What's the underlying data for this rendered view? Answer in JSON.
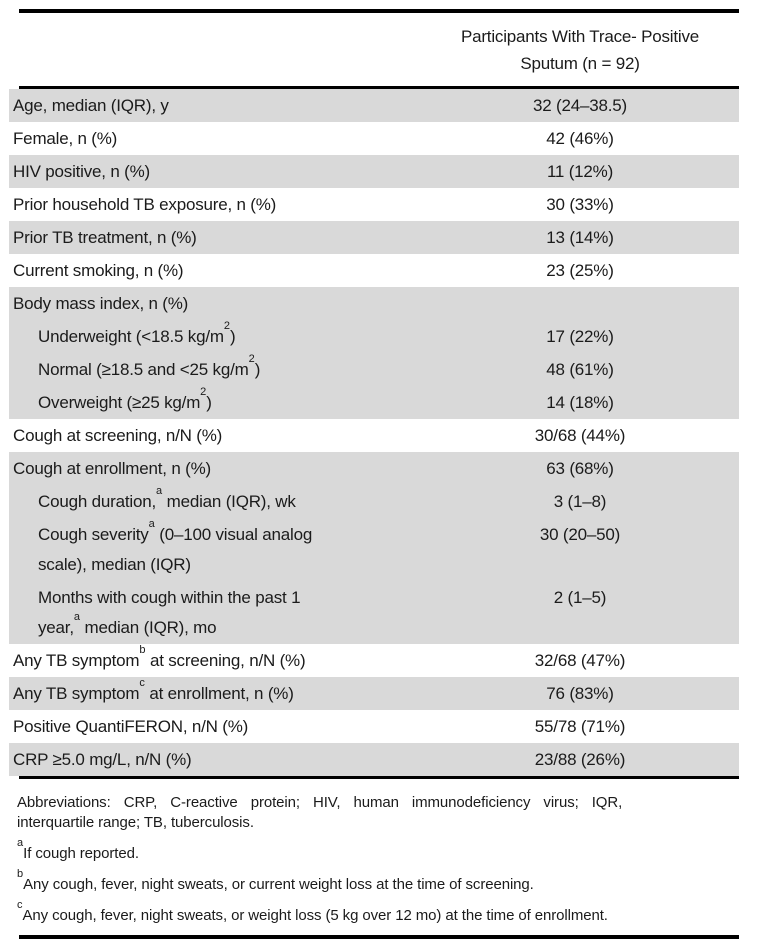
{
  "header": {
    "col2_title": "Participants With Trace- Positive\nSputum (n = 92)"
  },
  "table": {
    "rows": [
      {
        "parts": [
          {
            "t": "Age, median (IQR), y"
          }
        ],
        "value": "32 (24–38.5)",
        "shaded": true,
        "indent": false
      },
      {
        "parts": [
          {
            "t": "Female, n (%)"
          }
        ],
        "value": "42 (46%)",
        "shaded": false,
        "indent": false
      },
      {
        "parts": [
          {
            "t": "HIV positive, n (%)"
          }
        ],
        "value": "11 (12%)",
        "shaded": true,
        "indent": false
      },
      {
        "parts": [
          {
            "t": "Prior household TB exposure, n (%)"
          }
        ],
        "value": "30 (33%)",
        "shaded": false,
        "indent": false
      },
      {
        "parts": [
          {
            "t": "Prior TB treatment, n (%)"
          }
        ],
        "value": "13 (14%)",
        "shaded": true,
        "indent": false
      },
      {
        "parts": [
          {
            "t": "Current smoking, n (%)"
          }
        ],
        "value": "23 (25%)",
        "shaded": false,
        "indent": false
      },
      {
        "parts": [
          {
            "t": "Body mass index, n (%)"
          }
        ],
        "value": "",
        "shaded": true,
        "indent": false
      },
      {
        "parts": [
          {
            "t": "Underweight (<18.5 kg/m"
          },
          {
            "t": "2",
            "sup": true
          },
          {
            "t": ")"
          }
        ],
        "value": "17 (22%)",
        "shaded": true,
        "indent": true
      },
      {
        "parts": [
          {
            "t": "Normal (≥18.5 and <25 kg/m"
          },
          {
            "t": "2",
            "sup": true
          },
          {
            "t": ")"
          }
        ],
        "value": "48 (61%)",
        "shaded": true,
        "indent": true
      },
      {
        "parts": [
          {
            "t": "Overweight (≥25 kg/m"
          },
          {
            "t": "2",
            "sup": true
          },
          {
            "t": ")"
          }
        ],
        "value": "14 (18%)",
        "shaded": true,
        "indent": true
      },
      {
        "parts": [
          {
            "t": "Cough at screening, n/N (%)"
          }
        ],
        "value": "30/68 (44%)",
        "shaded": false,
        "indent": false
      },
      {
        "parts": [
          {
            "t": "Cough at enrollment, n (%)"
          }
        ],
        "value": "63 (68%)",
        "shaded": true,
        "indent": false
      },
      {
        "parts": [
          {
            "t": "Cough duration,"
          },
          {
            "t": "a",
            "sup": true
          },
          {
            "t": " median (IQR), wk"
          }
        ],
        "value": "3 (1–8)",
        "shaded": true,
        "indent": true
      },
      {
        "parts": [
          {
            "t": "Cough severity"
          },
          {
            "t": "a",
            "sup": true
          },
          {
            "t": " (0–100 visual analog\nscale), median (IQR)"
          }
        ],
        "value": "30 (20–50)",
        "shaded": true,
        "indent": true
      },
      {
        "parts": [
          {
            "t": "Months with cough within the past 1\nyear,"
          },
          {
            "t": "a",
            "sup": true
          },
          {
            "t": " median (IQR), mo"
          }
        ],
        "value": "2 (1–5)",
        "shaded": true,
        "indent": true
      },
      {
        "parts": [
          {
            "t": "Any TB symptom"
          },
          {
            "t": "b",
            "sup": true
          },
          {
            "t": " at screening, n/N (%)"
          }
        ],
        "value": "32/68 (47%)",
        "shaded": false,
        "indent": false
      },
      {
        "parts": [
          {
            "t": "Any TB symptom"
          },
          {
            "t": "c",
            "sup": true
          },
          {
            "t": " at enrollment, n (%)"
          }
        ],
        "value": "76 (83%)",
        "shaded": true,
        "indent": false
      },
      {
        "parts": [
          {
            "t": "Positive QuantiFERON, n/N (%)"
          }
        ],
        "value": "55/78 (71%)",
        "shaded": false,
        "indent": false
      },
      {
        "parts": [
          {
            "t": "CRP ≥5.0 mg/L, n/N (%)"
          }
        ],
        "value": "23/88 (26%)",
        "shaded": true,
        "indent": false
      }
    ]
  },
  "footnotes": {
    "abbreviations": "Abbreviations: CRP, C-reactive protein; HIV, human immunodeficiency virus; IQR,\ninterquartile range; TB, tuberculosis.",
    "notes": [
      {
        "marker": "a",
        "text": "If cough reported."
      },
      {
        "marker": "b",
        "text": "Any cough, fever, night sweats, or current weight loss at the time of screening."
      },
      {
        "marker": "c",
        "text": "Any cough, fever, night sweats, or weight loss (5 kg over 12 mo) at the time of enrollment."
      }
    ]
  },
  "colors": {
    "row_shade": "#d9d9d9",
    "rule": "#000000",
    "text": "#1b1b1b"
  }
}
